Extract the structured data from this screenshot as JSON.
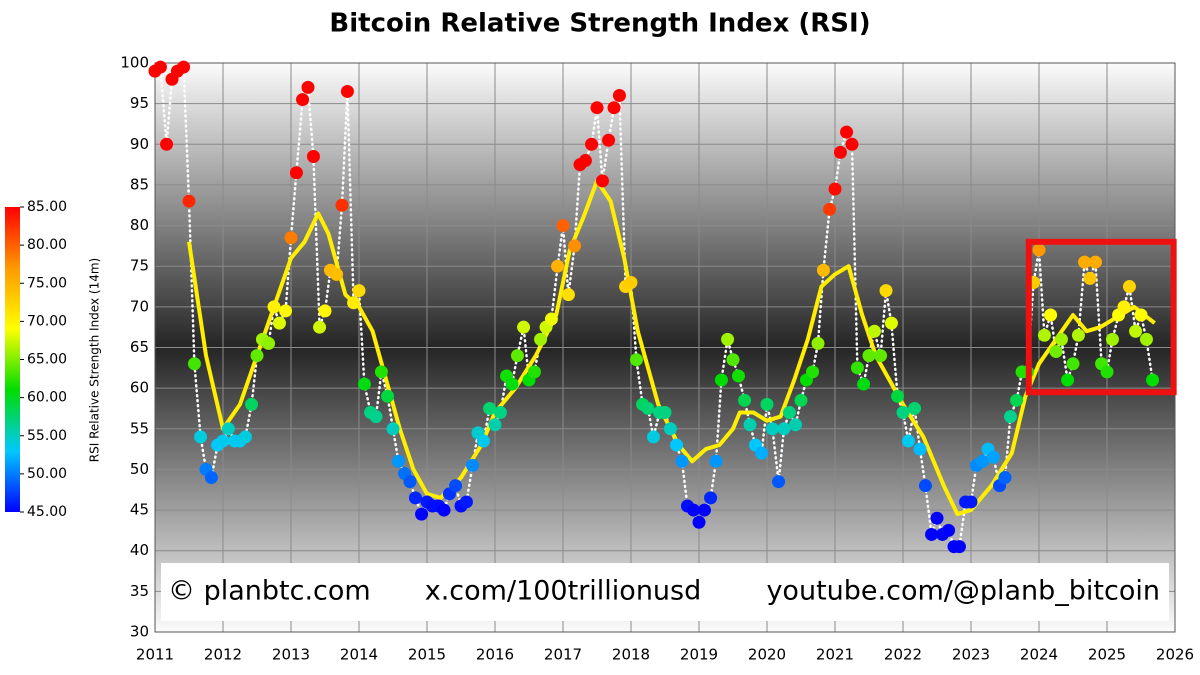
{
  "chart_data": {
    "type": "scatter",
    "title": "Bitcoin Relative Strength Index (RSI)",
    "colorbar_label": "RSI Relative Strength Index (14m)",
    "watermark": [
      "© planbtc.com",
      "x.com/100trillionusd",
      "youtube.com/@planb_bitcoin"
    ],
    "xlim": [
      2011,
      2026
    ],
    "xticks": [
      2011,
      2012,
      2013,
      2014,
      2015,
      2016,
      2017,
      2018,
      2019,
      2020,
      2021,
      2022,
      2023,
      2024,
      2025,
      2026
    ],
    "ylim": [
      30,
      100
    ],
    "yticks": [
      30,
      35,
      40,
      45,
      50,
      55,
      60,
      65,
      70,
      75,
      80,
      85,
      90,
      95,
      100
    ],
    "grid": true,
    "colorscale": {
      "range": [
        45,
        85
      ],
      "colors": [
        "#0000ff",
        "#00c8ff",
        "#00dd00",
        "#ffff00",
        "#ff9900",
        "#ff0000"
      ],
      "ticks": [
        {
          "value": 45,
          "label": "45.00"
        },
        {
          "value": 50,
          "label": "50.00"
        },
        {
          "value": 55,
          "label": "55.00"
        },
        {
          "value": 60,
          "label": "60.00"
        },
        {
          "value": 65,
          "label": "65.00"
        },
        {
          "value": 70,
          "label": "70.00"
        },
        {
          "value": 75,
          "label": "75.00"
        },
        {
          "value": 80,
          "label": "80.00"
        },
        {
          "value": 85,
          "label": "85.00"
        }
      ]
    },
    "points": {
      "x": [
        2011,
        2011.08,
        2011.17,
        2011.25,
        2011.33,
        2011.42,
        2011.5,
        2011.58,
        2011.67,
        2011.75,
        2011.83,
        2011.92,
        2012,
        2012.08,
        2012.17,
        2012.25,
        2012.33,
        2012.42,
        2012.5,
        2012.58,
        2012.67,
        2012.75,
        2012.83,
        2012.92,
        2013,
        2013.08,
        2013.17,
        2013.25,
        2013.33,
        2013.42,
        2013.5,
        2013.58,
        2013.67,
        2013.75,
        2013.83,
        2013.92,
        2014,
        2014.08,
        2014.17,
        2014.25,
        2014.33,
        2014.42,
        2014.5,
        2014.58,
        2014.67,
        2014.75,
        2014.83,
        2014.92,
        2015,
        2015.08,
        2015.17,
        2015.25,
        2015.33,
        2015.42,
        2015.5,
        2015.58,
        2015.67,
        2015.75,
        2015.83,
        2015.92,
        2016,
        2016.08,
        2016.17,
        2016.25,
        2016.33,
        2016.42,
        2016.5,
        2016.58,
        2016.67,
        2016.75,
        2016.83,
        2016.92,
        2017,
        2017.08,
        2017.17,
        2017.25,
        2017.33,
        2017.42,
        2017.5,
        2017.58,
        2017.67,
        2017.75,
        2017.83,
        2017.92,
        2018,
        2018.08,
        2018.17,
        2018.25,
        2018.33,
        2018.42,
        2018.5,
        2018.58,
        2018.67,
        2018.75,
        2018.83,
        2018.92,
        2019,
        2019.08,
        2019.17,
        2019.25,
        2019.33,
        2019.42,
        2019.5,
        2019.58,
        2019.67,
        2019.75,
        2019.83,
        2019.92,
        2020,
        2020.08,
        2020.17,
        2020.25,
        2020.33,
        2020.42,
        2020.5,
        2020.58,
        2020.67,
        2020.75,
        2020.83,
        2020.92,
        2021,
        2021.08,
        2021.17,
        2021.25,
        2021.33,
        2021.42,
        2021.5,
        2021.58,
        2021.67,
        2021.75,
        2021.83,
        2021.92,
        2022,
        2022.08,
        2022.17,
        2022.25,
        2022.33,
        2022.42,
        2022.5,
        2022.58,
        2022.67,
        2022.75,
        2022.83,
        2022.92,
        2023,
        2023.08,
        2023.17,
        2023.25,
        2023.33,
        2023.42,
        2023.5,
        2023.58,
        2023.67,
        2023.75,
        2023.83,
        2023.92,
        2024,
        2024.08,
        2024.17,
        2024.25,
        2024.33,
        2024.42,
        2024.5,
        2024.58,
        2024.67,
        2024.75,
        2024.83,
        2024.92,
        2025,
        2025.08,
        2025.17,
        2025.25,
        2025.33,
        2025.42,
        2025.5,
        2025.58,
        2025.67
      ],
      "values": [
        99,
        99.5,
        90,
        98,
        99,
        99.5,
        83,
        63,
        54,
        50,
        49,
        53,
        53.5,
        55,
        53.5,
        53.5,
        54,
        58,
        64,
        66,
        65.5,
        70,
        68,
        69.5,
        78.5,
        86.5,
        95.5,
        97,
        88.5,
        67.5,
        69.5,
        74.5,
        74,
        82.5,
        96.5,
        70.5,
        72,
        60.5,
        57,
        56.5,
        62,
        59,
        55,
        51,
        49.5,
        48.5,
        46.5,
        44.5,
        46,
        45.5,
        45.5,
        45,
        47,
        48,
        45.5,
        46,
        50.5,
        54.5,
        53.5,
        57.5,
        55.5,
        57,
        61.5,
        60.5,
        64,
        67.5,
        61,
        62,
        66,
        67.5,
        68.5,
        75,
        80,
        71.5,
        77.5,
        87.5,
        88,
        90,
        94.5,
        85.5,
        90.5,
        94.5,
        96,
        72.5,
        73,
        63.5,
        58,
        57.5,
        54,
        57,
        57,
        55,
        53,
        51,
        45.5,
        45,
        43.5,
        45,
        46.5,
        51,
        61,
        66,
        63.5,
        61.5,
        58.5,
        55.5,
        53,
        52,
        58,
        55,
        48.5,
        55,
        57,
        55.5,
        58.5,
        61,
        62,
        65.5,
        74.5,
        82,
        84.5,
        89,
        91.5,
        90,
        62.5,
        60.5,
        64,
        67,
        64,
        72,
        68,
        59,
        57,
        53.5,
        57.5,
        52.5,
        48,
        42,
        44,
        42,
        42.5,
        40.5,
        40.5,
        46,
        46,
        50.5,
        51,
        52.5,
        51.5,
        48,
        49,
        56.5,
        58.5,
        62,
        62,
        73,
        77,
        66.5,
        69,
        64.5,
        66,
        61,
        63,
        66.5,
        75.5,
        73.5,
        75.5,
        63,
        62,
        66,
        69,
        70,
        72.5,
        67,
        69,
        66,
        61
      ]
    },
    "average": {
      "color": "#ffee00",
      "x": [
        2011.5,
        2011.75,
        2012,
        2012.25,
        2012.5,
        2012.75,
        2013,
        2013.2,
        2013.4,
        2013.55,
        2013.8,
        2014,
        2014.2,
        2014.4,
        2014.6,
        2014.8,
        2015,
        2015.2,
        2015.5,
        2015.8,
        2016,
        2016.3,
        2016.6,
        2016.9,
        2017.1,
        2017.3,
        2017.5,
        2017.7,
        2017.9,
        2018.1,
        2018.4,
        2018.7,
        2018.9,
        2019.1,
        2019.3,
        2019.5,
        2019.6,
        2019.8,
        2020,
        2020.2,
        2020.4,
        2020.6,
        2020.8,
        2021,
        2021.2,
        2021.4,
        2021.6,
        2021.8,
        2022,
        2022.3,
        2022.6,
        2022.8,
        2023,
        2023.3,
        2023.6,
        2023.8,
        2024,
        2024.25,
        2024.5,
        2024.7,
        2024.9,
        2025.2,
        2025.4,
        2025.7
      ],
      "values": [
        78,
        64,
        55,
        58,
        64,
        70,
        76,
        78,
        81.5,
        79,
        71.5,
        70,
        67,
        61,
        55,
        50,
        47,
        46.5,
        49,
        53,
        57,
        60,
        64,
        69,
        77,
        81,
        85.5,
        83,
        76,
        67,
        58,
        53,
        51,
        52.5,
        53,
        55,
        57,
        57,
        56,
        56.5,
        61,
        66,
        72.5,
        74,
        75,
        69,
        64,
        61,
        58,
        54,
        48,
        44.5,
        45,
        48,
        52,
        59,
        63,
        66,
        69,
        67,
        67.5,
        69,
        70,
        68
      ]
    },
    "highlight": {
      "xlim": [
        2023.85,
        2025.98
      ],
      "ylim": [
        59.5,
        78
      ],
      "color": "#ee1111"
    }
  }
}
